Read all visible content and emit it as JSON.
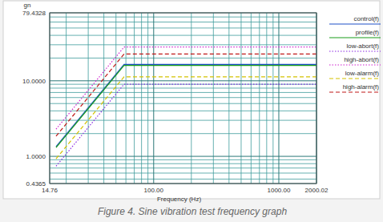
{
  "chart_data": {
    "type": "line",
    "caption": "Figure 4. Sine vibration test frequency graph",
    "x_label": "Frequency (Hz)",
    "y_label": "gn",
    "log": true,
    "grid": true,
    "legend": "right",
    "xlim": [
      14.76,
      2000.02
    ],
    "ylim": [
      0.4365,
      79.4328
    ],
    "xticks": [
      14.76,
      {
        "value": 100,
        "label": "100.00"
      },
      {
        "value": 1000,
        "label": "1000.00"
      },
      2000.02
    ],
    "yticks": [
      0.4365,
      {
        "value": 1,
        "label": "1.0000"
      },
      {
        "value": 10,
        "label": "10.0000"
      },
      79.4328
    ],
    "x": [
      16.6,
      58,
      2000.02
    ],
    "series": [
      {
        "name": "control(f)",
        "color": "#1e50c8",
        "line_style": "solid",
        "values": [
          1.35,
          16.5,
          16.5
        ]
      },
      {
        "name": "profile(f)",
        "color": "#1a9e1a",
        "line_style": "solid",
        "values": [
          1.31,
          16,
          16
        ]
      },
      {
        "name": "low-abort(f)",
        "color": "#8a2be2",
        "line_style": "dotted",
        "values": [
          0.74,
          9,
          9
        ]
      },
      {
        "name": "high-abort(f)",
        "color": "#d020d0",
        "line_style": "dotted",
        "values": [
          2.29,
          28,
          28
        ]
      },
      {
        "name": "low-alarm(f)",
        "color": "#d4c200",
        "line_style": "dashed",
        "values": [
          0.93,
          11.3,
          11.3
        ]
      },
      {
        "name": "high-alarm(f)",
        "color": "#c01818",
        "line_style": "dashed",
        "values": [
          1.85,
          22.6,
          22.6
        ]
      }
    ]
  }
}
